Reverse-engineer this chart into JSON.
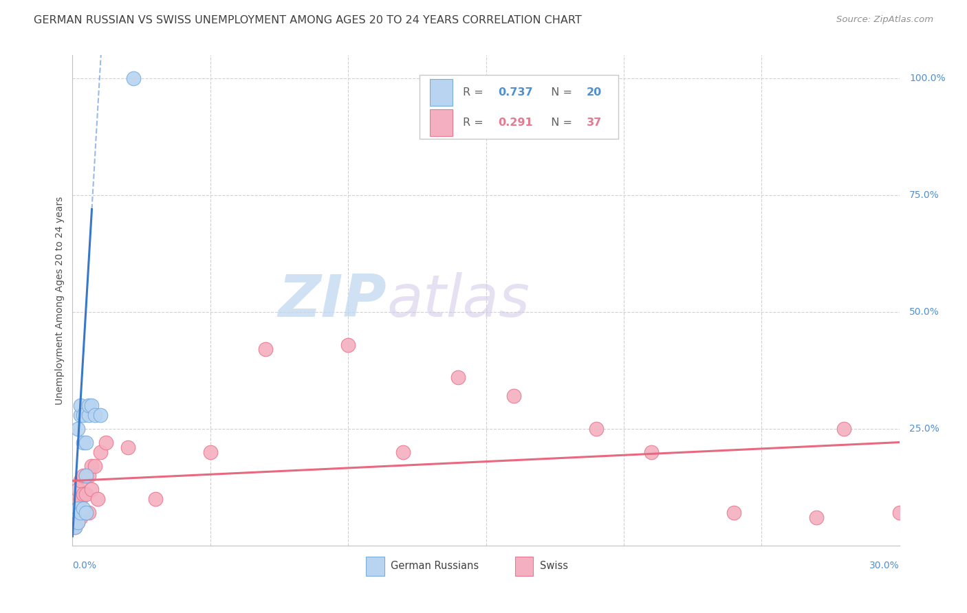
{
  "title": "GERMAN RUSSIAN VS SWISS UNEMPLOYMENT AMONG AGES 20 TO 24 YEARS CORRELATION CHART",
  "source": "Source: ZipAtlas.com",
  "ylabel": "Unemployment Among Ages 20 to 24 years",
  "right_yticks": [
    "100.0%",
    "75.0%",
    "50.0%",
    "25.0%"
  ],
  "right_ytick_vals": [
    1.0,
    0.75,
    0.5,
    0.25
  ],
  "watermark_zip": "ZIP",
  "watermark_atlas": "atlas",
  "gr_R": 0.737,
  "gr_N": 20,
  "sw_R": 0.291,
  "sw_N": 37,
  "gr_x": [
    0.001,
    0.001,
    0.002,
    0.002,
    0.002,
    0.003,
    0.003,
    0.003,
    0.004,
    0.004,
    0.004,
    0.005,
    0.005,
    0.005,
    0.006,
    0.006,
    0.007,
    0.008,
    0.01,
    0.022
  ],
  "gr_y": [
    0.04,
    0.07,
    0.05,
    0.08,
    0.25,
    0.07,
    0.28,
    0.3,
    0.08,
    0.22,
    0.28,
    0.07,
    0.15,
    0.22,
    0.28,
    0.3,
    0.3,
    0.28,
    0.28,
    1.0
  ],
  "sw_x": [
    0.001,
    0.001,
    0.001,
    0.002,
    0.002,
    0.002,
    0.003,
    0.003,
    0.003,
    0.004,
    0.004,
    0.004,
    0.005,
    0.005,
    0.005,
    0.006,
    0.006,
    0.007,
    0.007,
    0.008,
    0.009,
    0.01,
    0.012,
    0.02,
    0.03,
    0.05,
    0.07,
    0.1,
    0.12,
    0.14,
    0.16,
    0.19,
    0.21,
    0.24,
    0.27,
    0.28,
    0.3
  ],
  "sw_y": [
    0.04,
    0.07,
    0.1,
    0.05,
    0.08,
    0.12,
    0.06,
    0.1,
    0.14,
    0.07,
    0.11,
    0.15,
    0.07,
    0.11,
    0.15,
    0.07,
    0.15,
    0.12,
    0.17,
    0.17,
    0.1,
    0.2,
    0.22,
    0.21,
    0.1,
    0.2,
    0.42,
    0.43,
    0.2,
    0.36,
    0.32,
    0.25,
    0.2,
    0.07,
    0.06,
    0.25,
    0.07
  ],
  "xlim": [
    0.0,
    0.3
  ],
  "ylim": [
    0.0,
    1.05
  ],
  "background_color": "#ffffff",
  "grid_color": "#d0d0d0",
  "blue_line_color": "#3878c8",
  "pink_line_color": "#e86880",
  "scatter_blue_face": "#b8d4f0",
  "scatter_blue_edge": "#7aacdc",
  "scatter_pink_face": "#f4b0c0",
  "scatter_pink_edge": "#e87890",
  "title_color": "#404040",
  "ylabel_color": "#505050",
  "right_axis_color": "#5090d0",
  "xlabel_color": "#5090d0",
  "legend_text_color": "#606060",
  "legend_blue_val_color": "#5090d0",
  "legend_pink_val_color": "#e87890"
}
